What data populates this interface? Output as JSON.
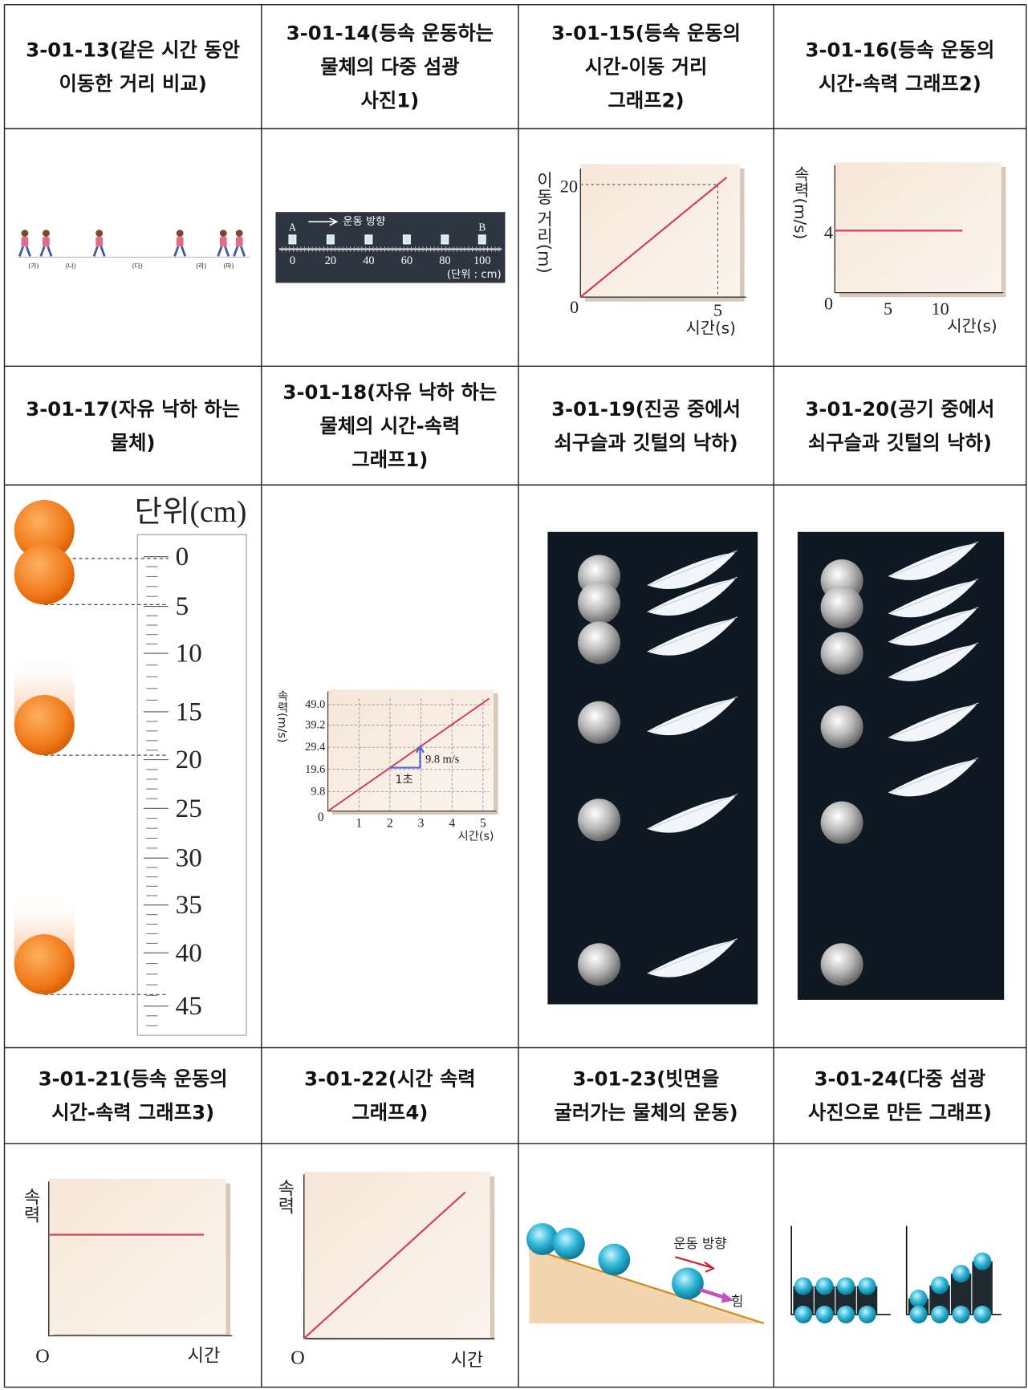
{
  "cells": [
    {
      "caption": [
        "3-01-13(같은 시간 동안",
        "이동한 거리 비교)"
      ],
      "labels": [
        "(가)",
        "(나)",
        "(다)",
        "(라)",
        "(마)"
      ]
    },
    {
      "caption": [
        "3-01-14(등속 운동하는",
        "물체의 다중 섬광",
        "사진1)"
      ],
      "labels": [
        "A",
        "운동 방향",
        "B",
        "0",
        "20",
        "40",
        "60",
        "80",
        "100",
        "(단위 : cm)"
      ]
    },
    {
      "caption": [
        "3-01-15(등속 운동의",
        "시간-이동 거리",
        "그래프2)"
      ],
      "labels": [
        "이동 거리(m)",
        "20",
        "0",
        "5",
        "시간(s)"
      ]
    },
    {
      "caption": [
        "3-01-16(등속 운동의",
        "시간-속력 그래프2)"
      ],
      "labels": [
        "속력(m/s)",
        "4",
        "0",
        "5",
        "10",
        "시간(s)"
      ]
    },
    {
      "caption": [
        "3-01-17(자유 낙하 하는",
        "물체)"
      ],
      "labels": [
        "단위(cm)",
        "0",
        "5",
        "10",
        "15",
        "20",
        "25",
        "30",
        "35",
        "40",
        "45"
      ]
    },
    {
      "caption": [
        "3-01-18(자유 낙하 하는",
        "물체의 시간-속력",
        "그래프1)"
      ],
      "labels": [
        "속력(m/s)",
        "49.0",
        "39.2",
        "29.4",
        "19.6",
        "9.8",
        "0",
        "1",
        "2",
        "3",
        "4",
        "5",
        "시간(s)",
        "9.8 m/s",
        "1초"
      ]
    },
    {
      "caption": [
        "3-01-19(진공 중에서",
        "쇠구슬과 깃털의 낙하)"
      ]
    },
    {
      "caption": [
        "3-01-20(공기 중에서",
        "쇠구슬과 깃털의 낙하)"
      ]
    },
    {
      "caption": [
        "3-01-21(등속 운동의",
        "시간-속력 그래프3)"
      ],
      "labels": [
        "속력",
        "O",
        "시간"
      ]
    },
    {
      "caption": [
        "3-01-22(시간 속력",
        "그래프4)"
      ],
      "labels": [
        "속력",
        "O",
        "시간"
      ]
    },
    {
      "caption": [
        "3-01-23(빗면을",
        "굴러가는 물체의 운동)"
      ],
      "labels": [
        "운동 방향",
        "힘"
      ]
    },
    {
      "caption": [
        "3-01-24(다중 섬광",
        "사진으로 만든 그래프)"
      ]
    }
  ]
}
